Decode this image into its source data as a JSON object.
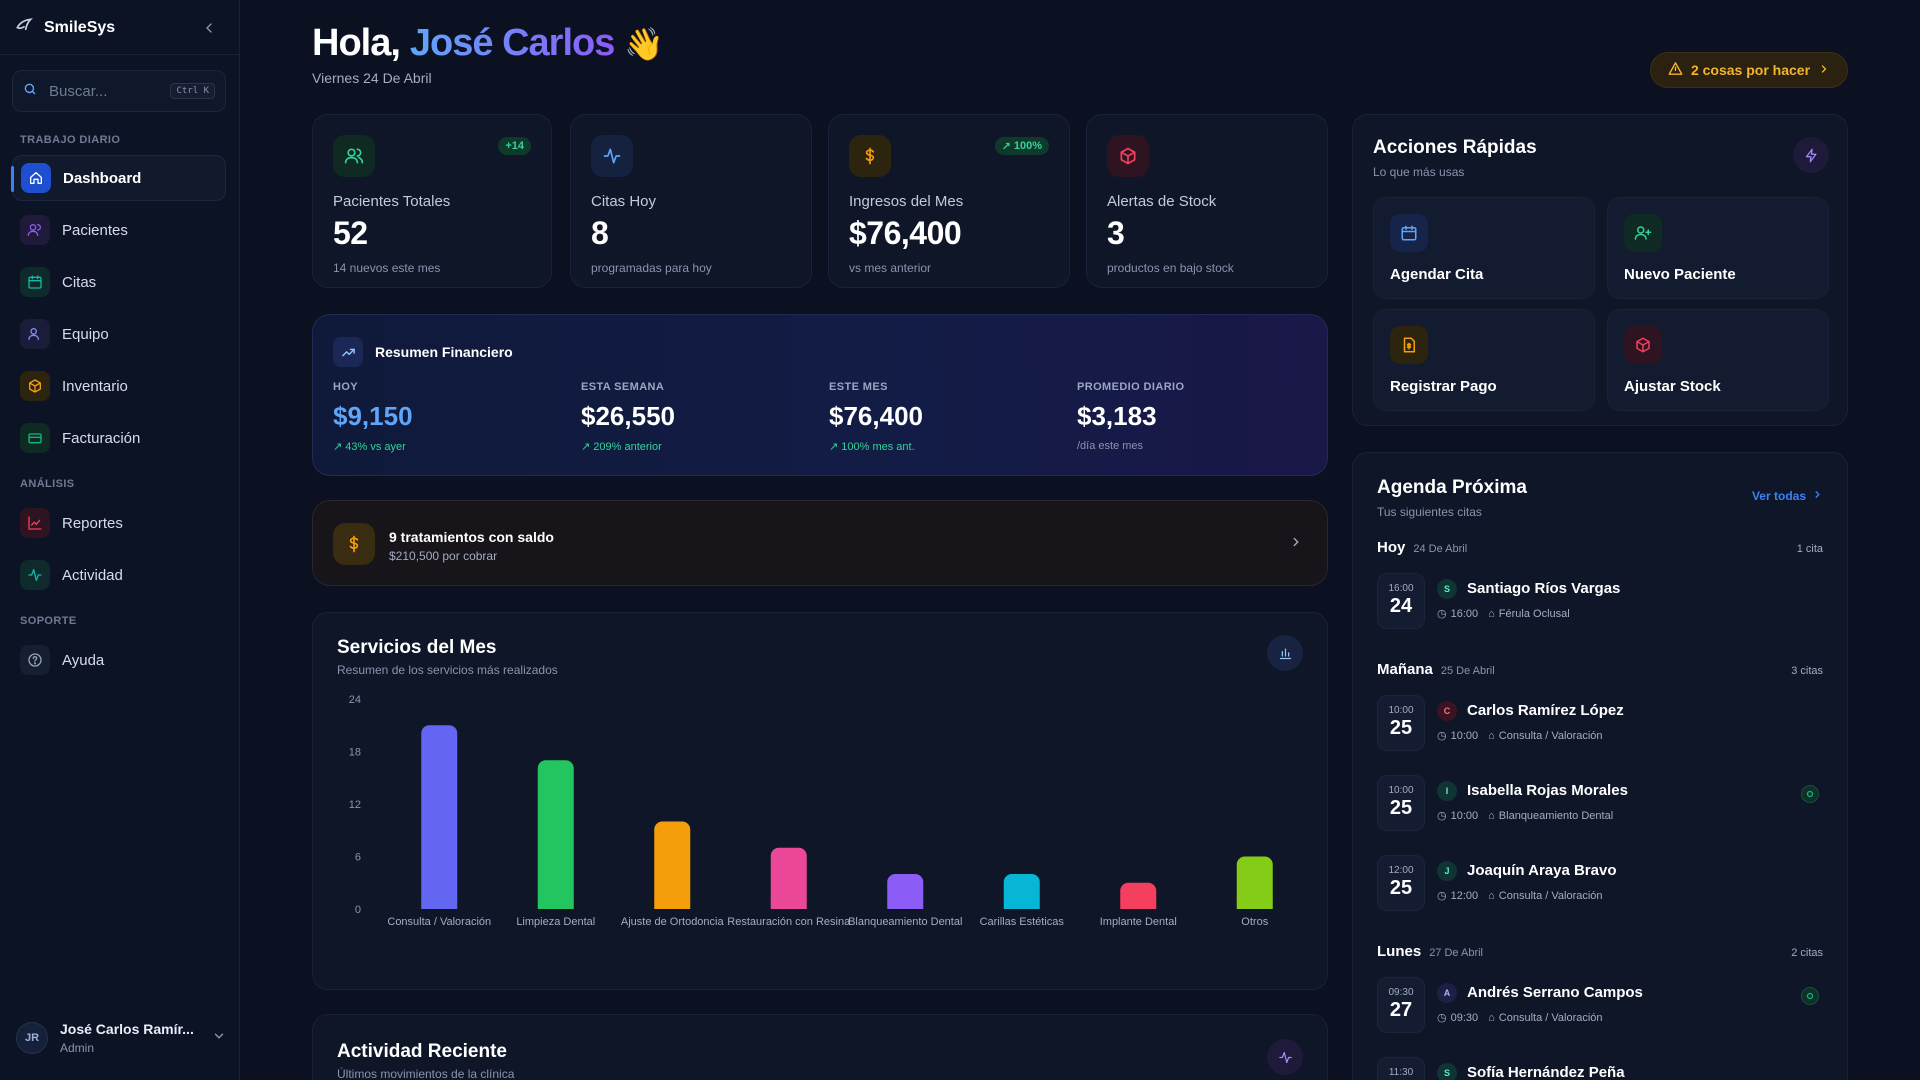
{
  "app": {
    "name": "SmileSys"
  },
  "search": {
    "placeholder": "Buscar...",
    "shortcut": "Ctrl K"
  },
  "sidebar": {
    "sections": [
      "TRABAJO DIARIO",
      "ANÁLISIS",
      "SOPORTE"
    ],
    "items": [
      {
        "label": "Dashboard",
        "icon": "home-icon",
        "color": "#3b82f6",
        "active": true
      },
      {
        "label": "Pacientes",
        "icon": "users-icon",
        "color": "#8b5cf6"
      },
      {
        "label": "Citas",
        "icon": "calendar-icon",
        "color": "#14b8a6"
      },
      {
        "label": "Equipo",
        "icon": "team-icon",
        "color": "#6366f1"
      },
      {
        "label": "Inventario",
        "icon": "box-icon",
        "color": "#f59e0b"
      },
      {
        "label": "Facturación",
        "icon": "credit-card-icon",
        "color": "#10b981"
      },
      {
        "label": "Reportes",
        "icon": "line-chart-icon",
        "color": "#f43f5e"
      },
      {
        "label": "Actividad",
        "icon": "activity-icon",
        "color": "#14b8a6"
      },
      {
        "label": "Ayuda",
        "icon": "help-icon",
        "color": "#94a3b8"
      }
    ]
  },
  "user": {
    "initials": "JR",
    "name": "José Carlos Ramír...",
    "role": "Admin"
  },
  "header": {
    "greeting": "Hola,",
    "name": "José Carlos",
    "wave": "👋",
    "date": "Viernes 24 De Abril",
    "todo": "2 cosas por hacer"
  },
  "stats": [
    {
      "label": "Pacientes Totales",
      "value": "52",
      "sub": "14 nuevos este mes",
      "badge": "+14",
      "icon": "users-icon",
      "color": "#34d399"
    },
    {
      "label": "Citas Hoy",
      "value": "8",
      "sub": "programadas para hoy",
      "badge": "",
      "icon": "activity-icon",
      "color": "#60a5fa"
    },
    {
      "label": "Ingresos del Mes",
      "value": "$76,400",
      "sub": "vs mes anterior",
      "badge": "100%",
      "icon": "dollar-icon",
      "color": "#f59e0b"
    },
    {
      "label": "Alertas de Stock",
      "value": "3",
      "sub": "productos en bajo stock",
      "badge": "",
      "icon": "box-icon",
      "color": "#f43f5e"
    }
  ],
  "finance": {
    "title": "Resumen Financiero",
    "cols": [
      {
        "label": "HOY",
        "value": "$9,150",
        "note": "43% vs ayer"
      },
      {
        "label": "ESTA SEMANA",
        "value": "$26,550",
        "note": "209% anterior"
      },
      {
        "label": "ESTE MES",
        "value": "$76,400",
        "note": "100% mes ant."
      },
      {
        "label": "PROMEDIO DIARIO",
        "value": "$3,183",
        "note": "/día este mes"
      }
    ]
  },
  "pending": {
    "title": "9 tratamientos con saldo",
    "sub": "$210,500 por cobrar"
  },
  "services": {
    "title": "Servicios del Mes",
    "subtitle": "Resumen de los servicios más realizados"
  },
  "chart_data": {
    "type": "bar",
    "categories": [
      "Consulta / Valoración",
      "Limpieza Dental",
      "Ajuste de Ortodoncia",
      "Restauración con Resina",
      "Blanqueamiento Dental",
      "Carillas Estéticas",
      "Implante Dental",
      "Otros"
    ],
    "values": [
      21,
      17,
      10,
      7,
      4,
      4,
      3,
      6
    ],
    "colors": [
      "#6366f1",
      "#22c55e",
      "#f59e0b",
      "#ec4899",
      "#8b5cf6",
      "#06b6d4",
      "#f43f5e",
      "#84cc16"
    ],
    "yticks": [
      0,
      6,
      12,
      18,
      24
    ],
    "ylim": [
      0,
      24
    ],
    "grid": false
  },
  "activity": {
    "title": "Actividad Reciente",
    "subtitle": "Últimos movimientos de la clínica"
  },
  "quick_actions": {
    "title": "Acciones Rápidas",
    "subtitle": "Lo que más usas",
    "items": [
      {
        "label": "Agendar Cita",
        "icon": "calendar-icon",
        "color": "#60a5fa"
      },
      {
        "label": "Nuevo Paciente",
        "icon": "user-plus-icon",
        "color": "#34d399"
      },
      {
        "label": "Registrar Pago",
        "icon": "file-dollar-icon",
        "color": "#f59e0b"
      },
      {
        "label": "Ajustar Stock",
        "icon": "box-icon",
        "color": "#f43f5e"
      }
    ]
  },
  "agenda": {
    "title": "Agenda Próxima",
    "subtitle": "Tus siguientes citas",
    "see_all": "Ver todas",
    "days": [
      {
        "day": "Hoy",
        "date": "24 De Abril",
        "count": "1 cita"
      },
      {
        "day": "Mañana",
        "date": "25 De Abril",
        "count": "3 citas"
      },
      {
        "day": "Lunes",
        "date": "27 De Abril",
        "count": "2 citas"
      }
    ],
    "appointments": [
      {
        "time": "16:00",
        "day": "24",
        "initial": "S",
        "name": "Santiago Ríos Vargas",
        "service": "Férula Oclusal",
        "color": "#14b8a6",
        "confirmed": false
      },
      {
        "time": "10:00",
        "day": "25",
        "initial": "C",
        "name": "Carlos Ramírez López",
        "service": "Consulta / Valoración",
        "color": "#f43f5e",
        "confirmed": false
      },
      {
        "time": "10:00",
        "day": "25",
        "initial": "I",
        "name": "Isabella Rojas Morales",
        "service": "Blanqueamiento Dental",
        "color": "#14b8a6",
        "confirmed": true
      },
      {
        "time": "12:00",
        "day": "25",
        "initial": "J",
        "name": "Joaquín Araya Bravo",
        "service": "Consulta / Valoración",
        "color": "#14b8a6",
        "confirmed": false
      },
      {
        "time": "09:30",
        "day": "27",
        "initial": "A",
        "name": "Andrés Serrano Campos",
        "service": "Consulta / Valoración",
        "color": "#6366f1",
        "confirmed": true
      },
      {
        "time": "11:30",
        "day": "",
        "initial": "S",
        "name": "Sofía Hernández Peña",
        "service": "",
        "color": "#14b8a6",
        "confirmed": false
      }
    ]
  }
}
